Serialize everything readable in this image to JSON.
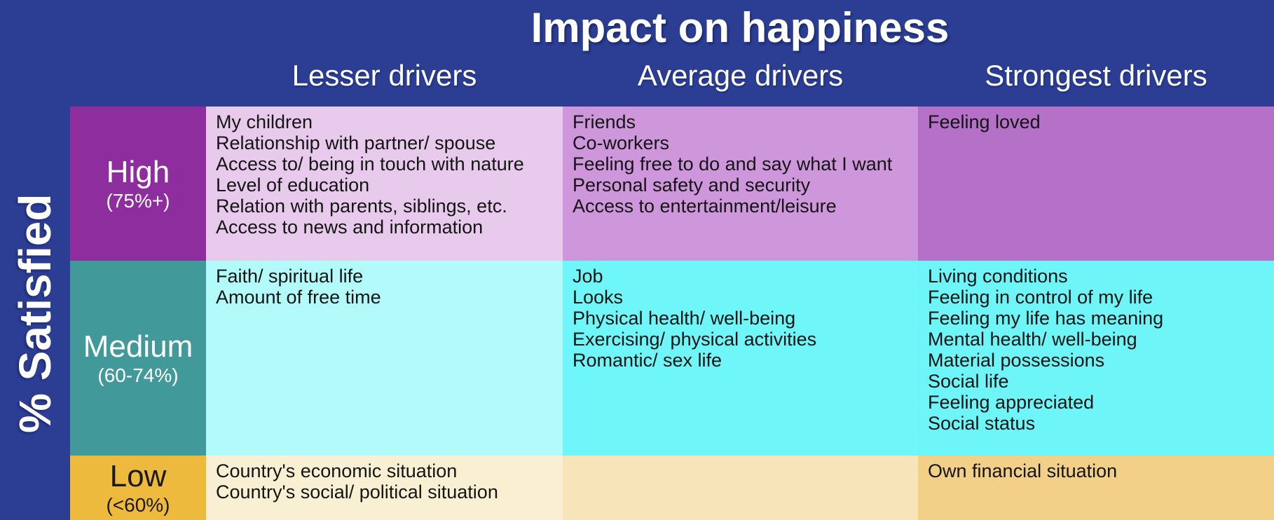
{
  "chart_data": {
    "type": "table",
    "title": "Impact on happiness",
    "y_axis_label": "% Satisfied",
    "column_headers": [
      "Lesser drivers",
      "Average drivers",
      "Strongest drivers"
    ],
    "rows": [
      {
        "label": "High",
        "range": "(75%+)",
        "cells": [
          [
            "My children",
            "Relationship with partner/ spouse",
            "Access to/ being in touch with nature",
            "Level of education",
            "Relation with parents, siblings, etc.",
            "Access to news and information"
          ],
          [
            "Friends",
            "Co-workers",
            "Feeling free to do and say what I want",
            "Personal safety and security",
            "Access to entertainment/leisure"
          ],
          [
            "Feeling loved"
          ]
        ]
      },
      {
        "label": "Medium",
        "range": "(60-74%)",
        "cells": [
          [
            "Faith/ spiritual life",
            "Amount of free time"
          ],
          [
            "Job",
            "Looks",
            "Physical health/ well-being",
            "Exercising/ physical activities",
            "Romantic/ sex life"
          ],
          [
            "Living conditions",
            "Feeling in control of my life",
            "Feeling my life has meaning",
            "Mental health/ well-being",
            "Material possessions",
            "Social life",
            "Feeling appreciated",
            "Social status"
          ]
        ]
      },
      {
        "label": "Low",
        "range": "(<60%)",
        "cells": [
          [
            "Country's economic situation",
            "Country's social/ political situation"
          ],
          [],
          [
            "Own financial situation"
          ]
        ]
      }
    ]
  },
  "colors": {
    "background": "#2b3e94",
    "title_text": "#ffffff",
    "header_text": "#ffffff",
    "cell_text": "#141414",
    "rows": [
      {
        "label_bg": "#8e2d9e",
        "label_text": "#ffffff",
        "cells": [
          "#e8cbec",
          "#cf97db",
          "#b571c8"
        ]
      },
      {
        "label_bg": "#419a99",
        "label_text": "#ffffff",
        "cells": [
          "#b3fafa",
          "#6ff6f9",
          "#6df5f8"
        ]
      },
      {
        "label_bg": "#edba3e",
        "label_text": "#1a1a1a",
        "cells": [
          "#f9f0d4",
          "#f7e4b8",
          "#f2d088"
        ]
      }
    ]
  }
}
